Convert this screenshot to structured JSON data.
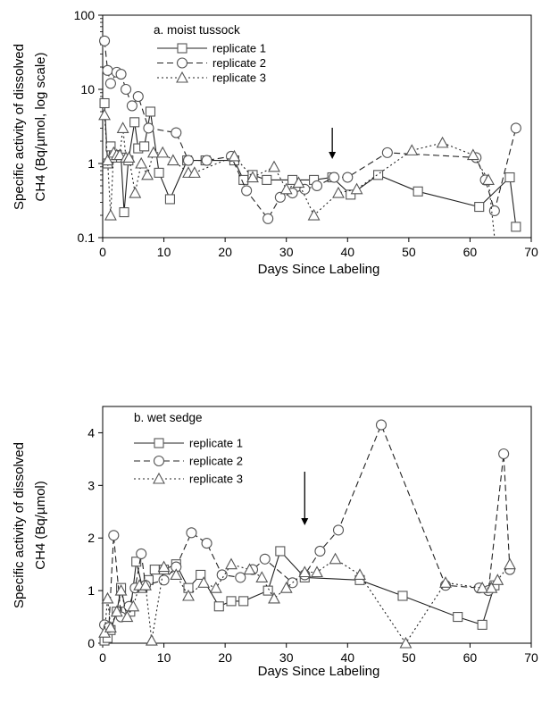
{
  "chart_data": [
    {
      "type": "line",
      "y_scale": "log",
      "ylabel_line1": "Specific activity of dissolved",
      "ylabel_line2": "CH4 (Bq/µmol, log scale)",
      "xlabel": "Days Since Labeling",
      "xlim": [
        0,
        70
      ],
      "ylim": [
        0.1,
        100
      ],
      "x_ticks": [
        "0",
        "10",
        "20",
        "30",
        "40",
        "50",
        "60",
        "70"
      ],
      "y_ticks": [
        "0.1",
        "1",
        "10",
        "100"
      ],
      "legend_title": "a. moist tussock",
      "legend_position": "top-center",
      "arrow_x": 37.5,
      "series": [
        {
          "name": "replicate 1",
          "marker": "square",
          "dash": "solid",
          "x": [
            0.3,
            0.8,
            1.3,
            1.8,
            2.3,
            3.0,
            3.5,
            4.2,
            5.2,
            5.8,
            6.8,
            7.8,
            9.2,
            11.0,
            13.8,
            16.8,
            21.5,
            23.0,
            24.5,
            26.8,
            31.0,
            34.5,
            37.5,
            40.5,
            45.0,
            51.5,
            61.5,
            66.5,
            67.5
          ],
          "y": [
            6.5,
            1.0,
            1.7,
            1.2,
            1.3,
            1.2,
            0.22,
            1.1,
            3.6,
            1.6,
            1.7,
            5.0,
            0.75,
            0.33,
            1.1,
            1.1,
            1.1,
            0.6,
            0.7,
            0.6,
            0.6,
            0.6,
            0.65,
            0.38,
            0.7,
            0.42,
            0.26,
            0.65,
            0.14
          ]
        },
        {
          "name": "replicate 2",
          "marker": "circle",
          "dash": "dashed",
          "x": [
            0.3,
            0.8,
            1.3,
            2.3,
            3.0,
            3.8,
            4.8,
            5.8,
            7.5,
            12.0,
            14.0,
            17.0,
            21.0,
            23.5,
            27.0,
            29.0,
            31.0,
            33.0,
            35.0,
            37.8,
            40.0,
            46.5,
            61.0,
            62.5,
            64.0,
            67.5
          ],
          "y": [
            45,
            18,
            12,
            17,
            16,
            10,
            6.0,
            8.0,
            3.0,
            2.6,
            1.1,
            1.1,
            1.25,
            0.43,
            0.18,
            0.35,
            0.4,
            0.45,
            0.5,
            0.65,
            0.65,
            1.4,
            1.2,
            0.6,
            0.23,
            3.0
          ]
        },
        {
          "name": "replicate 3",
          "marker": "triangle",
          "dash": "dotted",
          "x": [
            0.3,
            0.8,
            1.3,
            1.8,
            2.3,
            2.8,
            3.3,
            3.8,
            4.3,
            5.3,
            6.3,
            7.3,
            8.3,
            9.8,
            11.5,
            14.0,
            15.0,
            21.5,
            24.5,
            28.0,
            30.0,
            32.0,
            34.5,
            38.5,
            41.5,
            50.5,
            55.5,
            60.5,
            63.0,
            64.0
          ],
          "y": [
            4.5,
            1.1,
            0.2,
            1.4,
            1.3,
            1.3,
            3.0,
            1.2,
            1.2,
            0.4,
            1.0,
            0.7,
            1.4,
            1.4,
            1.1,
            0.75,
            0.75,
            1.25,
            0.65,
            0.9,
            0.45,
            0.55,
            0.2,
            0.4,
            0.45,
            1.5,
            1.9,
            1.3,
            0.6,
            0.09
          ]
        }
      ]
    },
    {
      "type": "line",
      "y_scale": "linear",
      "ylabel_line1": "Specific activity of dissolved",
      "ylabel_line2": "CH4 (Bq/µmol)",
      "xlabel": "Days Since Labeling",
      "xlim": [
        0,
        70
      ],
      "ylim": [
        0,
        4.5
      ],
      "x_ticks": [
        "0",
        "10",
        "20",
        "30",
        "40",
        "50",
        "60",
        "70"
      ],
      "y_ticks": [
        "0",
        "1",
        "2",
        "3",
        "4"
      ],
      "legend_title": "b. wet sedge",
      "legend_position": "top-left",
      "arrow_x": 33,
      "series": [
        {
          "name": "replicate 1",
          "marker": "square",
          "dash": "solid",
          "x": [
            0.3,
            0.8,
            1.3,
            2.3,
            3.0,
            3.8,
            4.5,
            5.5,
            6.5,
            7.5,
            8.5,
            10.0,
            12.0,
            14.0,
            16.0,
            19.0,
            21.0,
            23.0,
            27.0,
            29.0,
            33.0,
            42.0,
            49.0,
            58.0,
            62.0,
            64.0
          ],
          "y": [
            0.05,
            0.1,
            0.25,
            0.6,
            1.05,
            0.6,
            0.6,
            1.55,
            1.05,
            1.2,
            1.4,
            1.4,
            1.5,
            1.05,
            1.3,
            0.7,
            0.8,
            0.8,
            1.0,
            1.75,
            1.25,
            1.2,
            0.9,
            0.5,
            0.35,
            1.1
          ]
        },
        {
          "name": "replicate 2",
          "marker": "circle",
          "dash": "dashed",
          "x": [
            0.3,
            1.0,
            1.8,
            3.0,
            4.3,
            5.3,
            6.3,
            7.0,
            10.0,
            12.0,
            14.5,
            17.0,
            19.5,
            22.5,
            24.5,
            26.5,
            31.0,
            33.0,
            35.5,
            38.5,
            45.5,
            56.0,
            61.5,
            63.0,
            65.5,
            66.5
          ],
          "y": [
            0.35,
            0.3,
            2.05,
            0.5,
            0.7,
            1.05,
            1.7,
            1.1,
            1.2,
            1.45,
            2.1,
            1.9,
            1.3,
            1.25,
            1.4,
            1.6,
            1.15,
            1.3,
            1.75,
            2.15,
            4.15,
            1.1,
            1.05,
            1.0,
            3.6,
            1.4
          ]
        },
        {
          "name": "replicate 3",
          "marker": "triangle",
          "dash": "dotted",
          "x": [
            0.3,
            0.8,
            1.3,
            2.3,
            3.0,
            4.0,
            5.0,
            6.0,
            7.0,
            8.0,
            10.0,
            12.0,
            14.0,
            16.5,
            18.5,
            21.0,
            24.0,
            26.0,
            28.0,
            30.0,
            33.0,
            35.0,
            38.0,
            42.0,
            49.5,
            56.0,
            62.0,
            63.5,
            64.5,
            66.5
          ],
          "y": [
            0.2,
            0.85,
            0.3,
            0.6,
            1.0,
            0.5,
            0.7,
            1.1,
            1.1,
            0.05,
            1.45,
            1.3,
            0.9,
            1.15,
            1.05,
            1.5,
            1.4,
            1.25,
            0.85,
            1.05,
            1.35,
            1.35,
            1.6,
            1.3,
            0.0,
            1.15,
            1.05,
            1.05,
            1.2,
            1.5
          ]
        }
      ]
    }
  ]
}
